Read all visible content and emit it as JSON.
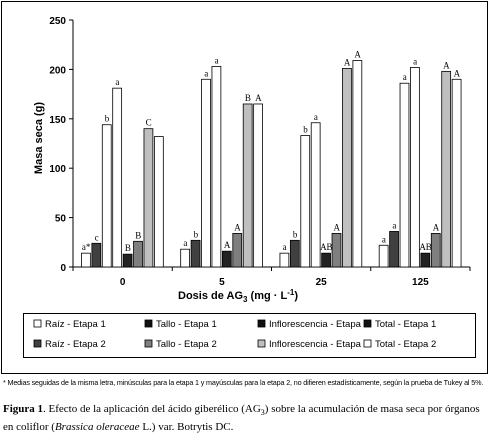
{
  "chart_data": {
    "type": "bar",
    "ylabel": "Masa seca (g)",
    "xlabel": "Dosis de AG",
    "xlabel_sub": "3",
    "xlabel_unit": " (mg · L",
    "xlabel_unit_sup": "-1",
    "xlabel_end": ")",
    "ylim": [
      0,
      250
    ],
    "yticks": [
      0,
      50,
      100,
      150,
      200,
      250
    ],
    "categories": [
      "0",
      "5",
      "25",
      "125"
    ],
    "grid": false,
    "legend_position": "bottom",
    "series": [
      {
        "name": "Raíz - Etapa 1",
        "fill": "#ffffff",
        "values": [
          14,
          18,
          14,
          22
        ],
        "labels": [
          "a*",
          "a",
          "a",
          "a"
        ]
      },
      {
        "name": "Raíz - Etapa 2",
        "fill": "#404040",
        "values": [
          24,
          27,
          27,
          36
        ],
        "labels": [
          "c",
          "b",
          "b",
          "a"
        ]
      },
      {
        "name": "Tallo - Etapa 1",
        "fill": "#ffffff",
        "values": [
          144,
          190,
          133,
          186
        ],
        "labels": [
          "b",
          "a",
          "b",
          "a"
        ]
      },
      {
        "name": "Tallo - Etapa 2",
        "fill": "#ffffff",
        "values": [
          181,
          203,
          146,
          202
        ],
        "labels": [
          "a",
          "a",
          "a",
          "a"
        ]
      },
      {
        "name": "Inflorescencia - Etapa 1",
        "fill": "#222222",
        "values": [
          13,
          16,
          14,
          14
        ],
        "labels": [
          "B",
          "A",
          "AB",
          "AB"
        ]
      },
      {
        "name": "Total - Etapa 1",
        "fill": "#7f7f7f",
        "values": [
          26,
          34,
          34,
          34
        ],
        "labels": [
          "B",
          "A",
          "A",
          "A"
        ]
      },
      {
        "name": "Inflorescencia - Etapa 2",
        "fill": "#bfbfbf",
        "values": [
          140,
          165,
          201,
          198
        ],
        "labels": [
          "C",
          "B",
          "A",
          "A"
        ]
      },
      {
        "name": "Total - Etapa 2",
        "fill": "#ffffff",
        "values": [
          132,
          165,
          209,
          190
        ],
        "labels": [
          "",
          "A",
          "A",
          "A"
        ]
      }
    ],
    "legend": {
      "rows": [
        [
          {
            "label": "Raíz - Etapa 1",
            "fill": "#ffffff"
          },
          {
            "label": "Tallo - Etapa 1",
            "fill": "#111111"
          },
          {
            "label": "Inflorescencia - Etapa 1",
            "fill": "#111111"
          },
          {
            "label": "Total - Etapa 1",
            "fill": "#111111"
          }
        ],
        [
          {
            "label": "Raíz - Etapa 2",
            "fill": "#404040"
          },
          {
            "label": "Tallo - Etapa 2",
            "fill": "#7f7f7f"
          },
          {
            "label": "Inflorescencia - Etapa 2",
            "fill": "#bfbfbf"
          },
          {
            "label": "Total - Etapa 2",
            "fill": "#ffffff"
          }
        ]
      ]
    }
  },
  "footnote": "* Medias seguidas de la misma letra, minúsculas para la etapa 1 y mayúsculas para la etapa 2, no difieren estadísticamente, según la prueba de Tukey al 5%.",
  "caption": {
    "label": "Figura 1",
    "text_1": ". Efecto de la aplicación del ácido giberélico (AG",
    "sub": "3",
    "text_2": ") sobre la acumulación de masa seca por órganos en coliflor (",
    "species": "Brassica oleraceae",
    "text_3": " L.) var. Botrytis DC."
  }
}
